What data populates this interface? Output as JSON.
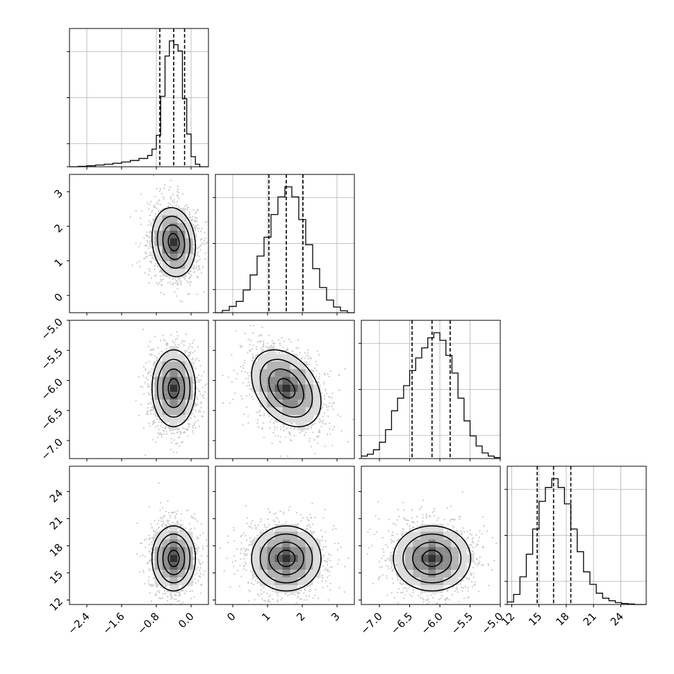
{
  "chart_data": {
    "type": "corner",
    "n_params": 4,
    "colors": {
      "ink": "#000000",
      "grid": "#b0b0b0",
      "scatter": "#9a9a9a",
      "background": "#ffffff"
    },
    "params": [
      {
        "range": [
          -2.8,
          0.4
        ],
        "ticks": [
          -2.4,
          -1.6,
          -0.8,
          0.0
        ],
        "tick_labels": [
          "−2.4",
          "−1.6",
          "−0.8",
          "0.0"
        ],
        "quantiles": [
          -0.72,
          -0.4,
          -0.15
        ],
        "mean": -0.4,
        "sd": 0.25
      },
      {
        "range": [
          -0.5,
          3.5
        ],
        "ticks": [
          0,
          1,
          2,
          3
        ],
        "tick_labels": [
          "0",
          "1",
          "2",
          "3"
        ],
        "quantiles": [
          1.04,
          1.54,
          2.02
        ],
        "mean": 1.54,
        "sd": 0.5
      },
      {
        "range": [
          -7.3,
          -5.0
        ],
        "ticks": [
          -7.0,
          -6.5,
          -6.0,
          -5.5,
          -5.0
        ],
        "tick_labels": [
          "−7.0",
          "−6.5",
          "−6.0",
          "−5.5",
          "−5.0"
        ],
        "quantiles": [
          -6.46,
          -6.13,
          -5.83
        ],
        "mean": -6.13,
        "sd": 0.32
      },
      {
        "range": [
          11.5,
          26.8
        ],
        "ticks": [
          12,
          15,
          18,
          21,
          24
        ],
        "tick_labels": [
          "12",
          "15",
          "18",
          "21",
          "24"
        ],
        "quantiles": [
          14.8,
          16.6,
          18.5
        ],
        "mean": 16.6,
        "sd": 1.8
      }
    ],
    "histograms": [
      {
        "param": 0,
        "edges": [
          -2.8,
          -2.6,
          -2.4,
          -2.2,
          -2.0,
          -1.8,
          -1.6,
          -1.4,
          -1.2,
          -1.0,
          -0.9,
          -0.8,
          -0.7,
          -0.6,
          -0.5,
          -0.4,
          -0.3,
          -0.2,
          -0.1,
          0.0,
          0.1,
          0.2,
          0.4
        ],
        "counts": [
          0.0,
          0.003,
          0.008,
          0.014,
          0.02,
          0.028,
          0.038,
          0.05,
          0.066,
          0.09,
          0.14,
          0.25,
          0.56,
          0.88,
          1.0,
          0.97,
          0.92,
          0.54,
          0.26,
          0.08,
          0.02,
          0.0
        ]
      },
      {
        "param": 1,
        "edges": [
          -0.5,
          -0.3,
          -0.1,
          0.1,
          0.3,
          0.5,
          0.7,
          0.9,
          1.1,
          1.3,
          1.5,
          1.7,
          1.9,
          2.1,
          2.3,
          2.5,
          2.7,
          2.9,
          3.1,
          3.3,
          3.5
        ],
        "counts": [
          0.0,
          0.018,
          0.05,
          0.09,
          0.18,
          0.3,
          0.45,
          0.6,
          0.78,
          0.92,
          1.0,
          0.92,
          0.74,
          0.54,
          0.35,
          0.2,
          0.1,
          0.045,
          0.015,
          0.0
        ]
      },
      {
        "param": 2,
        "edges": [
          -7.3,
          -7.2,
          -7.1,
          -7.0,
          -6.9,
          -6.8,
          -6.7,
          -6.6,
          -6.5,
          -6.4,
          -6.3,
          -6.2,
          -6.1,
          -6.0,
          -5.9,
          -5.8,
          -5.7,
          -5.6,
          -5.5,
          -5.4,
          -5.3,
          -5.2,
          -5.1,
          -5.0
        ],
        "counts": [
          0.02,
          0.035,
          0.07,
          0.13,
          0.23,
          0.38,
          0.48,
          0.58,
          0.7,
          0.8,
          0.88,
          0.96,
          1.0,
          0.94,
          0.82,
          0.68,
          0.48,
          0.3,
          0.18,
          0.1,
          0.045,
          0.02,
          0.008
        ]
      },
      {
        "param": 3,
        "edges": [
          11.5,
          12.2,
          12.9,
          13.6,
          14.3,
          15.0,
          15.7,
          16.4,
          17.1,
          17.8,
          18.5,
          19.2,
          19.9,
          20.6,
          21.3,
          22.0,
          22.7,
          23.4,
          24.1,
          24.8,
          25.5,
          26.2,
          26.8
        ],
        "counts": [
          0.02,
          0.08,
          0.22,
          0.4,
          0.6,
          0.82,
          0.93,
          1.0,
          0.93,
          0.8,
          0.6,
          0.42,
          0.26,
          0.16,
          0.09,
          0.05,
          0.03,
          0.015,
          0.008,
          0.004,
          0.0,
          0.0
        ]
      }
    ],
    "pairs": [
      {
        "x": 0,
        "y": 1,
        "correlation": -0.12
      },
      {
        "x": 0,
        "y": 2,
        "correlation": 0.0
      },
      {
        "x": 1,
        "y": 2,
        "correlation": -0.35
      },
      {
        "x": 0,
        "y": 3,
        "correlation": 0.0
      },
      {
        "x": 1,
        "y": 3,
        "correlation": 0.0
      },
      {
        "x": 2,
        "y": 3,
        "correlation": 0.0
      }
    ],
    "contour_levels_sigma": [
      0.5,
      1.0,
      1.5,
      2.0
    ],
    "grid": true
  }
}
